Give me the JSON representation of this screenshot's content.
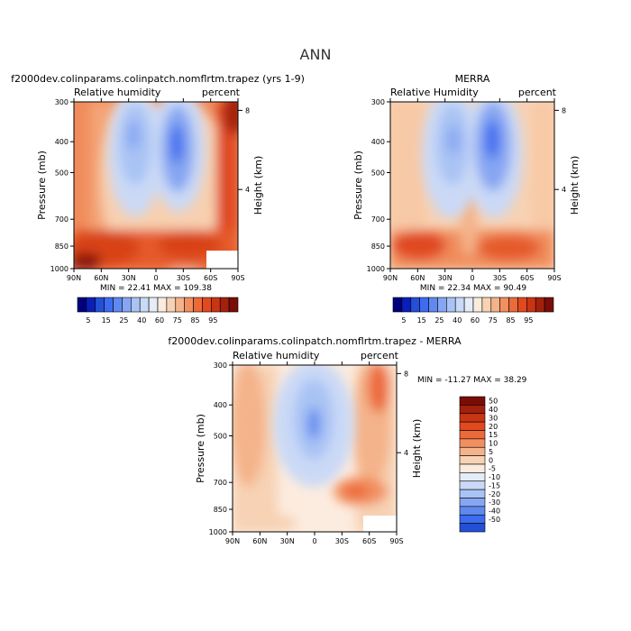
{
  "page_title": "ANN",
  "chart_data": [
    {
      "type": "heatmap",
      "id": "model",
      "title": "f2000dev.colinparams.colinpatch.nomflrtm.trapez (yrs 1-9)",
      "left_label": "Relative humidity",
      "right_label": "percent",
      "xlabel": "",
      "ylabel": "Pressure (mb)",
      "y2label": "Height (km)",
      "x_ticks": [
        "90N",
        "60N",
        "30N",
        "0",
        "30S",
        "60S",
        "90S"
      ],
      "x_values": [
        90,
        60,
        30,
        0,
        -30,
        -60,
        -90
      ],
      "y_ticks": [
        "300",
        "400",
        "500",
        "700",
        "850",
        "1000"
      ],
      "y_values": [
        300,
        400,
        500,
        700,
        850,
        1000
      ],
      "y2_ticks": [
        "8",
        "4"
      ],
      "y2_values": [
        8,
        4
      ],
      "ylim": [
        300,
        1000
      ],
      "stats": "MIN =   22.41   MAX =  109.38",
      "min": 22.41,
      "max": 109.38,
      "colorbar": {
        "levels": [
          "5",
          "15",
          "25",
          "40",
          "60",
          "75",
          "85",
          "95"
        ],
        "colors": [
          "#00007f",
          "#0a1fb8",
          "#2450d8",
          "#3d6cf0",
          "#6089f0",
          "#86a6f2",
          "#a9c3f4",
          "#cad9f6",
          "#e4ecf8",
          "#faebdc",
          "#f7d2b4",
          "#f4b38a",
          "#f18f5f",
          "#ec6a3a",
          "#e2491f",
          "#c83514",
          "#a3200c",
          "#7a0d06"
        ]
      }
    },
    {
      "type": "heatmap",
      "id": "obs",
      "title": "MERRA",
      "left_label": "Relative Humidity",
      "right_label": "percent",
      "xlabel": "",
      "ylabel": "Pressure (mb)",
      "y2label": "Height (km)",
      "x_ticks": [
        "90N",
        "60N",
        "30N",
        "0",
        "30S",
        "60S",
        "90S"
      ],
      "x_values": [
        90,
        60,
        30,
        0,
        -30,
        -60,
        -90
      ],
      "y_ticks": [
        "300",
        "400",
        "500",
        "700",
        "850",
        "1000"
      ],
      "y_values": [
        300,
        400,
        500,
        700,
        850,
        1000
      ],
      "y2_ticks": [
        "8",
        "4"
      ],
      "y2_values": [
        8,
        4
      ],
      "ylim": [
        300,
        1000
      ],
      "stats": "MIN =   22.34   MAX =   90.49",
      "min": 22.34,
      "max": 90.49,
      "colorbar": {
        "levels": [
          "5",
          "15",
          "25",
          "40",
          "60",
          "75",
          "85",
          "95"
        ],
        "colors": [
          "#00007f",
          "#0a1fb8",
          "#2450d8",
          "#3d6cf0",
          "#6089f0",
          "#86a6f2",
          "#a9c3f4",
          "#cad9f6",
          "#e4ecf8",
          "#faebdc",
          "#f7d2b4",
          "#f4b38a",
          "#f18f5f",
          "#ec6a3a",
          "#e2491f",
          "#c83514",
          "#a3200c",
          "#7a0d06"
        ]
      }
    },
    {
      "type": "heatmap",
      "id": "diff",
      "title": "f2000dev.colinparams.colinpatch.nomflrtm.trapez  -  MERRA",
      "left_label": "Relative humidity",
      "right_label": "percent",
      "xlabel": "",
      "ylabel": "Pressure (mb)",
      "y2label": "Height (km)",
      "x_ticks": [
        "90N",
        "60N",
        "30N",
        "0",
        "30S",
        "60S",
        "90S"
      ],
      "x_values": [
        90,
        60,
        30,
        0,
        -30,
        -60,
        -90
      ],
      "y_ticks": [
        "300",
        "400",
        "500",
        "700",
        "850",
        "1000"
      ],
      "y_values": [
        300,
        400,
        500,
        700,
        850,
        1000
      ],
      "y2_ticks": [
        "8",
        "4"
      ],
      "y2_values": [
        8,
        4
      ],
      "ylim": [
        300,
        1000
      ],
      "stats": "MIN =  -11.27   MAX =   38.29",
      "min": -11.27,
      "max": 38.29,
      "colorbar": {
        "levels": [
          "50",
          "40",
          "30",
          "20",
          "15",
          "10",
          "5",
          "0",
          "-5",
          "-10",
          "-15",
          "-20",
          "-30",
          "-40",
          "-50"
        ],
        "colors": [
          "#7a0d06",
          "#a3200c",
          "#c83514",
          "#e2491f",
          "#ec6a3a",
          "#f18f5f",
          "#f4b38a",
          "#f7d2b4",
          "#faebdc",
          "#e4ecf8",
          "#cad9f6",
          "#a9c3f4",
          "#86a6f2",
          "#6089f0",
          "#3d6cf0",
          "#2450d8"
        ]
      }
    }
  ]
}
